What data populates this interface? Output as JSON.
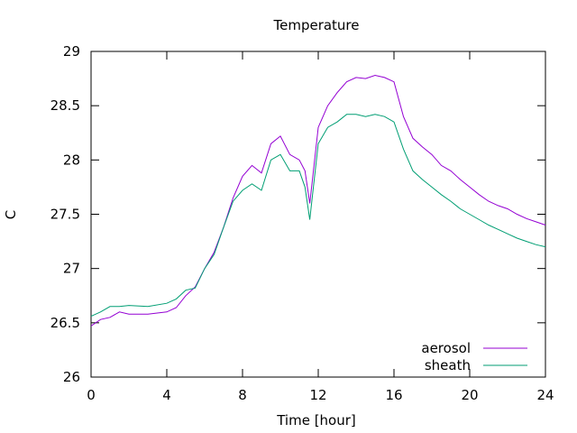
{
  "chart_data": {
    "type": "line",
    "title": "Temperature",
    "xlabel": "Time [hour]",
    "ylabel": "C",
    "xlim": [
      0,
      24
    ],
    "ylim": [
      26,
      29
    ],
    "xticks": [
      0,
      4,
      8,
      12,
      16,
      20,
      24
    ],
    "yticks": [
      26,
      26.5,
      27,
      27.5,
      28,
      28.5,
      29
    ],
    "grid": false,
    "legend_position": "bottom-right",
    "series": [
      {
        "name": "aerosol",
        "color": "#9400d3",
        "points": [
          [
            0,
            26.47
          ],
          [
            0.5,
            26.53
          ],
          [
            1,
            26.55
          ],
          [
            1.5,
            26.6
          ],
          [
            2,
            26.58
          ],
          [
            3,
            26.58
          ],
          [
            4,
            26.6
          ],
          [
            4.5,
            26.64
          ],
          [
            5,
            26.75
          ],
          [
            5.5,
            26.83
          ],
          [
            6,
            27.0
          ],
          [
            6.5,
            27.15
          ],
          [
            7,
            27.38
          ],
          [
            7.5,
            27.65
          ],
          [
            8,
            27.85
          ],
          [
            8.5,
            27.95
          ],
          [
            9,
            27.88
          ],
          [
            9.5,
            28.15
          ],
          [
            10,
            28.22
          ],
          [
            10.5,
            28.05
          ],
          [
            11,
            28.0
          ],
          [
            11.3,
            27.9
          ],
          [
            11.55,
            27.6
          ],
          [
            12,
            28.3
          ],
          [
            12.5,
            28.5
          ],
          [
            13,
            28.62
          ],
          [
            13.5,
            28.72
          ],
          [
            14,
            28.76
          ],
          [
            14.5,
            28.75
          ],
          [
            15,
            28.78
          ],
          [
            15.5,
            28.76
          ],
          [
            16,
            28.72
          ],
          [
            16.5,
            28.4
          ],
          [
            17,
            28.2
          ],
          [
            17.5,
            28.12
          ],
          [
            18,
            28.05
          ],
          [
            18.5,
            27.95
          ],
          [
            19,
            27.9
          ],
          [
            19.5,
            27.82
          ],
          [
            20,
            27.75
          ],
          [
            20.5,
            27.68
          ],
          [
            21,
            27.62
          ],
          [
            21.5,
            27.58
          ],
          [
            22,
            27.55
          ],
          [
            22.5,
            27.5
          ],
          [
            23,
            27.46
          ],
          [
            23.5,
            27.43
          ],
          [
            24,
            27.4
          ]
        ]
      },
      {
        "name": "sheath",
        "color": "#009e73",
        "points": [
          [
            0,
            26.56
          ],
          [
            0.5,
            26.6
          ],
          [
            1,
            26.65
          ],
          [
            1.5,
            26.65
          ],
          [
            2,
            26.66
          ],
          [
            3,
            26.65
          ],
          [
            4,
            26.68
          ],
          [
            4.5,
            26.72
          ],
          [
            5,
            26.8
          ],
          [
            5.5,
            26.82
          ],
          [
            6,
            27.0
          ],
          [
            6.5,
            27.13
          ],
          [
            7,
            27.38
          ],
          [
            7.5,
            27.62
          ],
          [
            8,
            27.72
          ],
          [
            8.5,
            27.78
          ],
          [
            9,
            27.72
          ],
          [
            9.5,
            28.0
          ],
          [
            10,
            28.05
          ],
          [
            10.5,
            27.9
          ],
          [
            11,
            27.9
          ],
          [
            11.3,
            27.75
          ],
          [
            11.55,
            27.45
          ],
          [
            12,
            28.15
          ],
          [
            12.5,
            28.3
          ],
          [
            13,
            28.35
          ],
          [
            13.5,
            28.42
          ],
          [
            14,
            28.42
          ],
          [
            14.5,
            28.4
          ],
          [
            15,
            28.42
          ],
          [
            15.5,
            28.4
          ],
          [
            16,
            28.35
          ],
          [
            16.5,
            28.1
          ],
          [
            17,
            27.9
          ],
          [
            17.5,
            27.82
          ],
          [
            18,
            27.75
          ],
          [
            18.5,
            27.68
          ],
          [
            19,
            27.62
          ],
          [
            19.5,
            27.55
          ],
          [
            20,
            27.5
          ],
          [
            20.5,
            27.45
          ],
          [
            21,
            27.4
          ],
          [
            21.5,
            27.36
          ],
          [
            22,
            27.32
          ],
          [
            22.5,
            27.28
          ],
          [
            23,
            27.25
          ],
          [
            23.5,
            27.22
          ],
          [
            24,
            27.2
          ]
        ]
      }
    ]
  }
}
